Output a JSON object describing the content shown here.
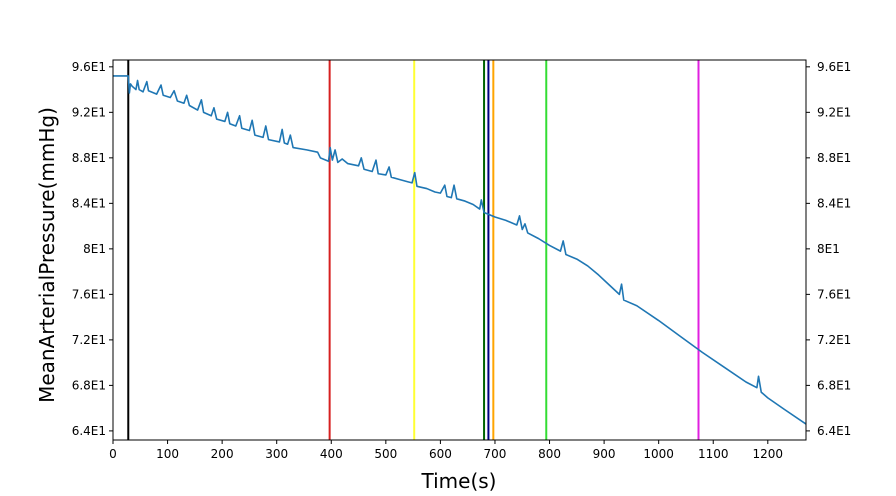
{
  "chart_data": {
    "type": "line",
    "title": "",
    "xlabel": "Time(s)",
    "ylabel": "MeanArterialPressure(mmHg)",
    "xlim": [
      0,
      1270
    ],
    "ylim": [
      63.2,
      96.6
    ],
    "x_ticks": [
      0,
      100,
      200,
      300,
      400,
      500,
      600,
      700,
      800,
      900,
      1000,
      1100,
      1200
    ],
    "y_ticks": [
      64,
      68,
      72,
      76,
      80,
      84,
      88,
      92,
      96
    ],
    "y_tick_labels": [
      "6.4E1",
      "6.8E1",
      "7.2E1",
      "7.6E1",
      "8E1",
      "8.4E1",
      "8.8E1",
      "9.2E1",
      "9.6E1"
    ],
    "right_axis_mirrored": true,
    "grid": false,
    "series": [
      {
        "color": "#1f77b4",
        "points": [
          [
            0,
            95.2
          ],
          [
            28,
            95.2
          ],
          [
            30,
            93.7
          ],
          [
            32,
            94.5
          ],
          [
            35,
            94.3
          ],
          [
            42,
            94.0
          ],
          [
            45,
            94.8
          ],
          [
            48,
            94.0
          ],
          [
            55,
            93.8
          ],
          [
            62,
            94.7
          ],
          [
            65,
            93.9
          ],
          [
            80,
            93.6
          ],
          [
            88,
            94.4
          ],
          [
            92,
            93.5
          ],
          [
            105,
            93.3
          ],
          [
            112,
            93.9
          ],
          [
            118,
            93.0
          ],
          [
            130,
            92.8
          ],
          [
            135,
            93.5
          ],
          [
            140,
            92.6
          ],
          [
            155,
            92.2
          ],
          [
            162,
            93.1
          ],
          [
            166,
            92.0
          ],
          [
            180,
            91.7
          ],
          [
            185,
            92.4
          ],
          [
            190,
            91.4
          ],
          [
            205,
            91.2
          ],
          [
            210,
            92.0
          ],
          [
            214,
            91.0
          ],
          [
            225,
            90.8
          ],
          [
            232,
            91.7
          ],
          [
            236,
            90.6
          ],
          [
            250,
            90.4
          ],
          [
            255,
            91.3
          ],
          [
            260,
            90.0
          ],
          [
            275,
            89.8
          ],
          [
            280,
            90.8
          ],
          [
            285,
            89.6
          ],
          [
            305,
            89.4
          ],
          [
            310,
            90.5
          ],
          [
            314,
            89.3
          ],
          [
            320,
            89.2
          ],
          [
            325,
            90.0
          ],
          [
            330,
            88.9
          ],
          [
            355,
            88.7
          ],
          [
            375,
            88.5
          ],
          [
            380,
            88.0
          ],
          [
            395,
            87.7
          ],
          [
            398,
            88.9
          ],
          [
            402,
            87.8
          ],
          [
            407,
            88.7
          ],
          [
            412,
            87.6
          ],
          [
            420,
            87.9
          ],
          [
            430,
            87.5
          ],
          [
            450,
            87.3
          ],
          [
            455,
            88.0
          ],
          [
            460,
            87.0
          ],
          [
            475,
            86.8
          ],
          [
            482,
            87.8
          ],
          [
            486,
            86.6
          ],
          [
            500,
            86.5
          ],
          [
            506,
            87.2
          ],
          [
            510,
            86.3
          ],
          [
            525,
            86.1
          ],
          [
            540,
            85.9
          ],
          [
            548,
            85.8
          ],
          [
            553,
            86.7
          ],
          [
            557,
            85.5
          ],
          [
            575,
            85.3
          ],
          [
            590,
            85.0
          ],
          [
            600,
            84.9
          ],
          [
            608,
            85.6
          ],
          [
            612,
            84.6
          ],
          [
            620,
            84.5
          ],
          [
            625,
            85.6
          ],
          [
            630,
            84.4
          ],
          [
            645,
            84.2
          ],
          [
            660,
            83.9
          ],
          [
            672,
            83.5
          ],
          [
            675,
            84.3
          ],
          [
            680,
            83.2
          ],
          [
            690,
            83.0
          ],
          [
            700,
            82.8
          ],
          [
            720,
            82.5
          ],
          [
            740,
            82.1
          ],
          [
            745,
            82.9
          ],
          [
            750,
            81.7
          ],
          [
            755,
            82.2
          ],
          [
            760,
            81.4
          ],
          [
            780,
            80.9
          ],
          [
            800,
            80.3
          ],
          [
            820,
            79.8
          ],
          [
            825,
            80.7
          ],
          [
            830,
            79.5
          ],
          [
            850,
            79.1
          ],
          [
            870,
            78.5
          ],
          [
            890,
            77.7
          ],
          [
            910,
            76.8
          ],
          [
            928,
            76.0
          ],
          [
            932,
            76.9
          ],
          [
            936,
            75.5
          ],
          [
            960,
            75.0
          ],
          [
            1000,
            73.7
          ],
          [
            1040,
            72.3
          ],
          [
            1080,
            70.9
          ],
          [
            1120,
            69.6
          ],
          [
            1160,
            68.3
          ],
          [
            1180,
            67.8
          ],
          [
            1183,
            68.8
          ],
          [
            1188,
            67.4
          ],
          [
            1200,
            66.9
          ],
          [
            1230,
            65.9
          ],
          [
            1270,
            64.6
          ]
        ]
      }
    ],
    "vertical_lines": [
      {
        "x": 28,
        "color": "#000000"
      },
      {
        "x": 397,
        "color": "#d62020"
      },
      {
        "x": 552,
        "color": "#ffff33"
      },
      {
        "x": 680,
        "color": "#006400"
      },
      {
        "x": 688,
        "color": "#000080"
      },
      {
        "x": 697,
        "color": "#ffa500"
      },
      {
        "x": 794,
        "color": "#33dd33"
      },
      {
        "x": 1073,
        "color": "#e020e0"
      }
    ]
  }
}
